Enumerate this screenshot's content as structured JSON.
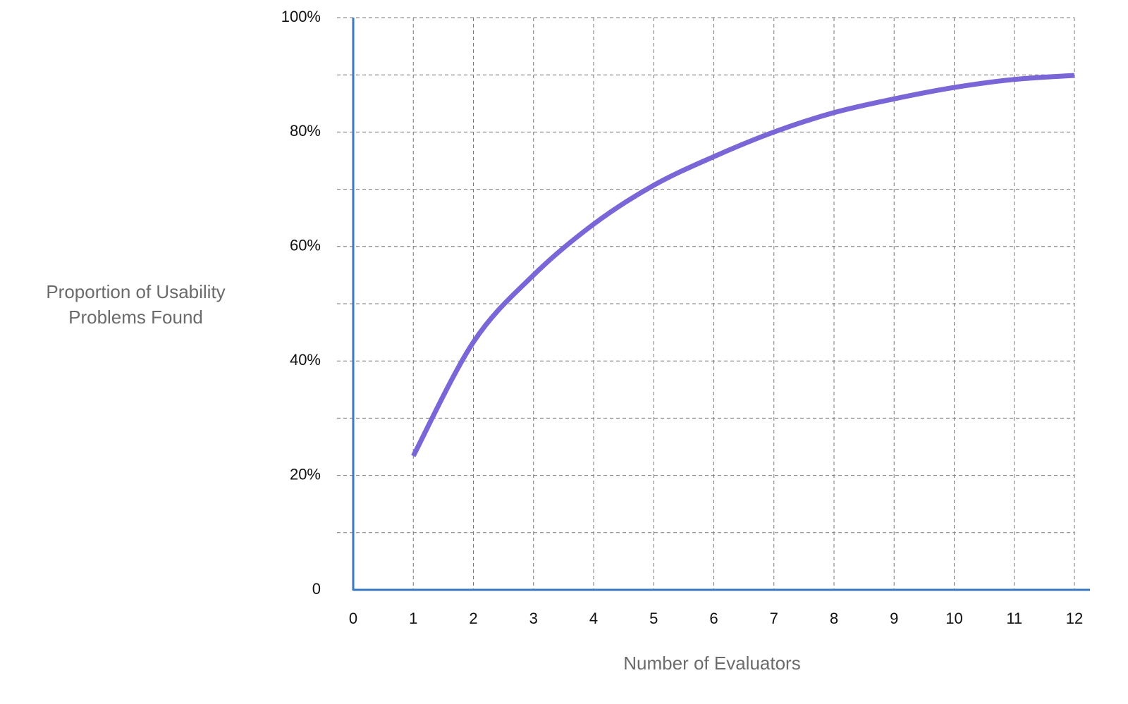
{
  "chart_data": {
    "type": "line",
    "y_label": "Proportion of Usability Problems Found",
    "x_label": "Number of Evaluators",
    "x": [
      1,
      2,
      3,
      4,
      5,
      6,
      7,
      8,
      9,
      10,
      11,
      12
    ],
    "series": [
      {
        "color": "#7a66d6",
        "values": [
          23.4,
          43.3,
          55,
          63.9,
          70.7,
          75.7,
          80,
          83.4,
          85.8,
          87.8,
          89.2,
          89.9
        ]
      }
    ],
    "xlim": [
      0,
      12
    ],
    "xticks": [
      0,
      1,
      2,
      3,
      4,
      5,
      6,
      7,
      8,
      9,
      10,
      11,
      12
    ],
    "ylim": [
      0,
      100
    ],
    "yticks": [
      0,
      {
        "value": 20,
        "label": "20%"
      },
      {
        "value": 40,
        "label": "40%"
      },
      {
        "value": 60,
        "label": "60%"
      },
      {
        "value": 80,
        "label": "80%"
      },
      {
        "value": 100,
        "label": "100%"
      }
    ],
    "yminor": [
      10,
      30,
      50,
      70,
      90
    ],
    "grid": true,
    "axis_color": "#3a78c2"
  }
}
